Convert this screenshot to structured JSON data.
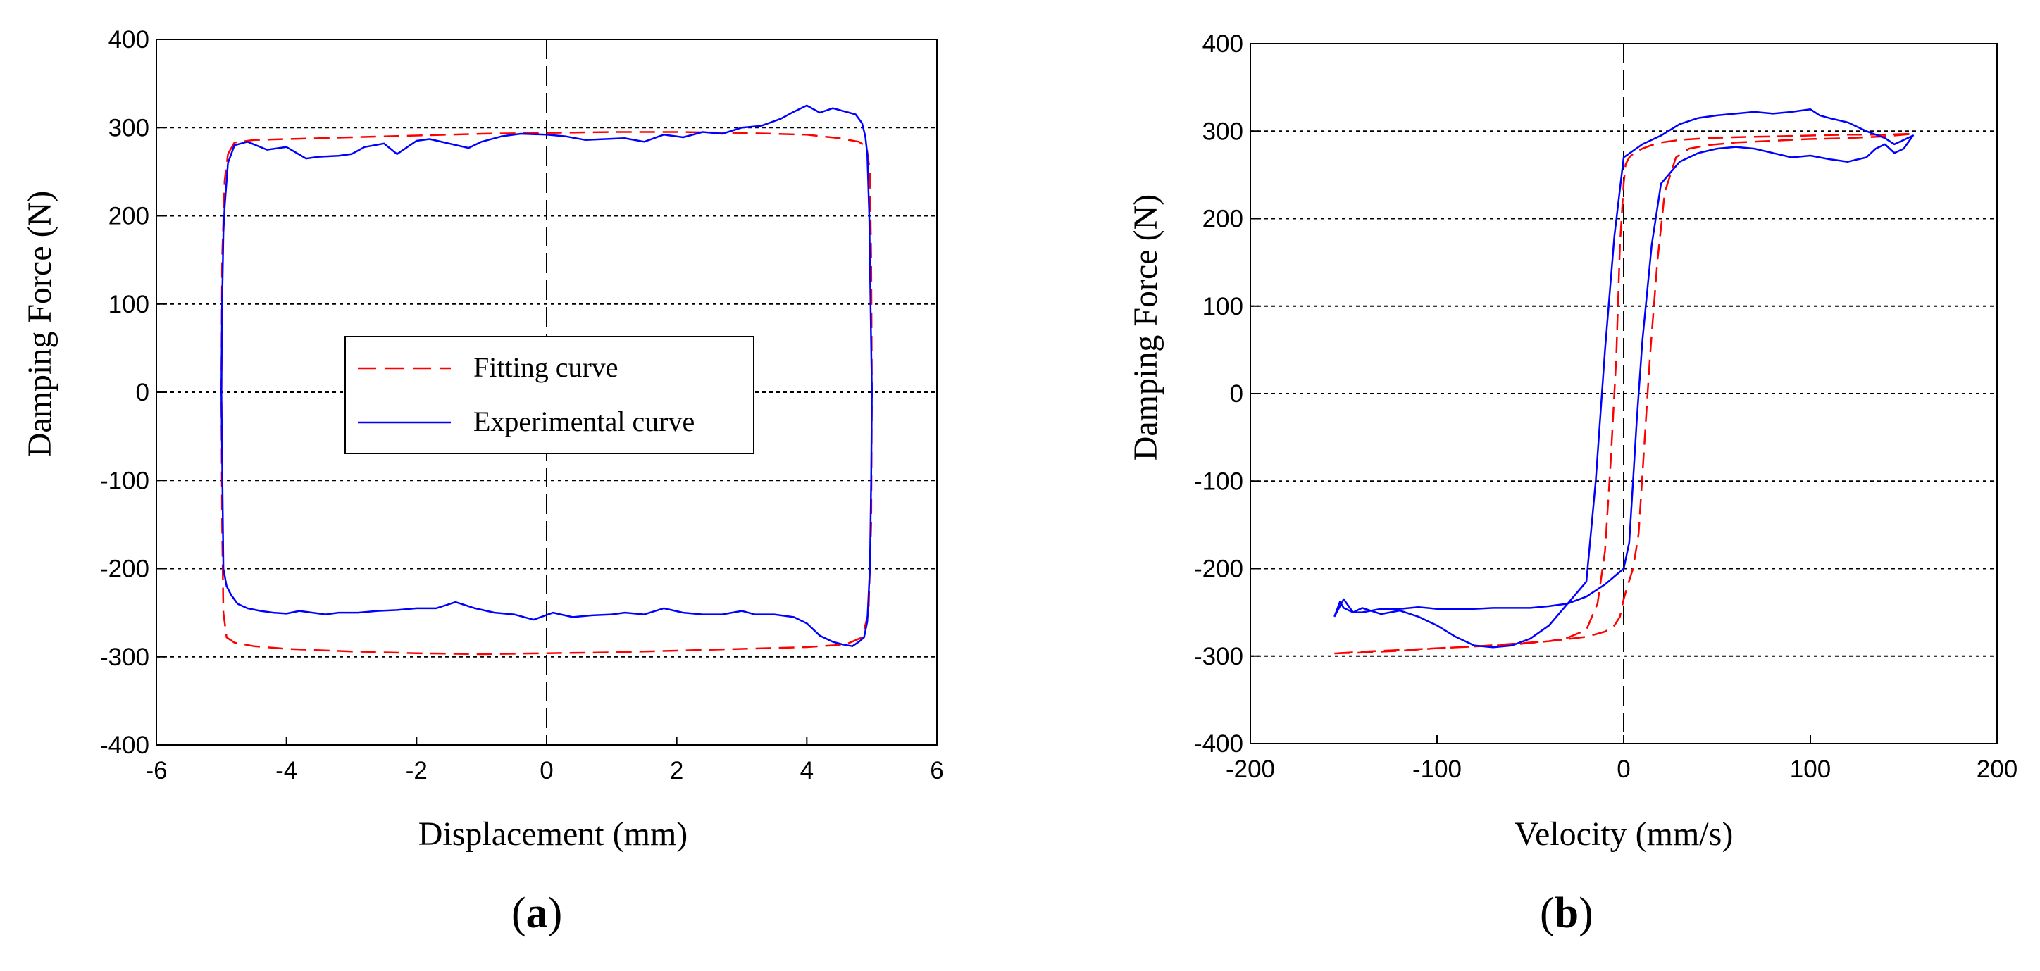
{
  "colors": {
    "fitting": "#ff0000",
    "experimental": "#0000ff",
    "grid": "#000000"
  },
  "chart_data": [
    {
      "type": "line",
      "panel_label": "(a)",
      "panel_letter": "a",
      "xlabel": "Displacement (mm)",
      "ylabel": "Damping Force (N)",
      "xlim": [
        -6,
        6
      ],
      "ylim": [
        -400,
        400
      ],
      "xticks": [
        -6,
        -4,
        -2,
        0,
        2,
        4,
        6
      ],
      "yticks": [
        400,
        300,
        200,
        100,
        0,
        -100,
        -200,
        -300,
        -400
      ],
      "legend": {
        "entries": [
          "Fitting curve",
          "Experimental curve"
        ],
        "placement": "center"
      },
      "series": [
        {
          "name": "Fitting curve",
          "style": "dashed",
          "x": [
            -4.9,
            -4.8,
            -4.5,
            -4,
            -3,
            -2,
            -1,
            0,
            1,
            2,
            3,
            4,
            4.5,
            4.8,
            4.92,
            4.97,
            4.99,
            5.0,
            4.99,
            4.95,
            4.85,
            4.6,
            4,
            3,
            2,
            1,
            0,
            -1,
            -2,
            -3,
            -4,
            -4.5,
            -4.8,
            -4.92,
            -4.97,
            -4.99,
            -5.0,
            -4.99,
            -4.95,
            -4.9
          ],
          "y": [
            270,
            283,
            286,
            287,
            289,
            291,
            293,
            294,
            295,
            295,
            294,
            292,
            288,
            284,
            278,
            250,
            150,
            0,
            -150,
            -250,
            -278,
            -286,
            -289,
            -291,
            -293,
            -295,
            -296,
            -297,
            -296,
            -294,
            -291,
            -288,
            -284,
            -278,
            -250,
            -150,
            0,
            150,
            240,
            270
          ]
        },
        {
          "name": "Experimental curve",
          "style": "solid",
          "x": [
            -4.95,
            -4.9,
            -4.8,
            -4.6,
            -4.3,
            -4.0,
            -3.7,
            -3.5,
            -3.2,
            -3.0,
            -2.8,
            -2.5,
            -2.3,
            -2.0,
            -1.8,
            -1.5,
            -1.2,
            -1.0,
            -0.7,
            -0.4,
            0,
            0.3,
            0.6,
            0.9,
            1.2,
            1.5,
            1.8,
            2.1,
            2.4,
            2.7,
            3.0,
            3.3,
            3.6,
            3.8,
            4.0,
            4.2,
            4.4,
            4.6,
            4.75,
            4.85,
            4.9,
            4.93,
            4.96,
            4.98,
            5.0,
            4.99,
            4.97,
            4.93,
            4.88,
            4.8,
            4.7,
            4.55,
            4.4,
            4.2,
            4.0,
            3.8,
            3.5,
            3.2,
            3.0,
            2.7,
            2.4,
            2.1,
            1.8,
            1.5,
            1.2,
            1.0,
            0.7,
            0.4,
            0.1,
            -0.2,
            -0.5,
            -0.8,
            -1.1,
            -1.4,
            -1.7,
            -2.0,
            -2.3,
            -2.6,
            -2.9,
            -3.2,
            -3.4,
            -3.6,
            -3.8,
            -4.0,
            -4.2,
            -4.4,
            -4.6,
            -4.75,
            -4.85,
            -4.92,
            -4.97,
            -5.0,
            -4.99,
            -4.97,
            -4.95
          ],
          "y": [
            210,
            260,
            280,
            284,
            275,
            278,
            265,
            267,
            268,
            270,
            278,
            282,
            270,
            285,
            287,
            282,
            277,
            284,
            290,
            293,
            292,
            290,
            286,
            287,
            288,
            284,
            292,
            289,
            295,
            293,
            300,
            302,
            310,
            318,
            325,
            317,
            322,
            318,
            315,
            305,
            290,
            270,
            200,
            100,
            0,
            -100,
            -200,
            -260,
            -278,
            -283,
            -288,
            -286,
            -283,
            -276,
            -262,
            -255,
            -252,
            -252,
            -248,
            -252,
            -252,
            -250,
            -245,
            -252,
            -250,
            -252,
            -253,
            -255,
            -250,
            -258,
            -252,
            -250,
            -245,
            -238,
            -245,
            -245,
            -247,
            -248,
            -250,
            -250,
            -252,
            -250,
            -248,
            -251,
            -250,
            -248,
            -245,
            -240,
            -230,
            -220,
            -200,
            0,
            100,
            180,
            210
          ]
        }
      ]
    },
    {
      "type": "line",
      "panel_label": "(b)",
      "panel_letter": "b",
      "xlabel": "Velocity (mm/s)",
      "ylabel": "Damping Force (N)",
      "xlim": [
        -200,
        200
      ],
      "ylim": [
        -400,
        400
      ],
      "xticks": [
        -200,
        -100,
        0,
        100,
        200
      ],
      "yticks": [
        400,
        300,
        200,
        100,
        0,
        -100,
        -200,
        -300,
        -400
      ],
      "series": [
        {
          "name": "Fitting curve",
          "style": "dashed",
          "x": [
            -155,
            -140,
            -120,
            -100,
            -80,
            -60,
            -40,
            -30,
            -20,
            -14,
            -10,
            -7,
            -4,
            -2,
            0,
            1,
            3,
            6,
            10,
            15,
            20,
            30,
            45,
            60,
            80,
            100,
            120,
            140,
            155,
            140,
            120,
            100,
            80,
            60,
            45,
            35,
            28,
            22,
            18,
            14,
            11,
            8,
            5,
            2,
            0,
            -2,
            -5,
            -10,
            -20,
            -40,
            -60,
            -80,
            -100,
            -120,
            -140,
            -155
          ],
          "y": [
            -297,
            -296,
            -294,
            -291,
            -289,
            -287,
            -283,
            -279,
            -270,
            -240,
            -180,
            -80,
            40,
            170,
            240,
            262,
            270,
            276,
            280,
            284,
            287,
            290,
            292,
            293,
            294,
            295,
            296,
            296,
            297,
            294,
            292,
            291,
            289,
            287,
            284,
            280,
            270,
            230,
            150,
            40,
            -60,
            -160,
            -200,
            -220,
            -235,
            -255,
            -265,
            -272,
            -278,
            -283,
            -286,
            -289,
            -291,
            -293,
            -295,
            -297
          ]
        },
        {
          "name": "Experimental curve",
          "style": "solid",
          "x": [
            -155,
            -150,
            -145,
            -140,
            -130,
            -120,
            -110,
            -100,
            -90,
            -80,
            -70,
            -60,
            -50,
            -40,
            -30,
            -20,
            -15,
            -10,
            -5,
            0,
            10,
            20,
            30,
            40,
            50,
            60,
            70,
            80,
            90,
            100,
            105,
            110,
            120,
            130,
            140,
            145,
            150,
            155,
            150,
            145,
            140,
            135,
            130,
            120,
            110,
            100,
            90,
            80,
            70,
            60,
            50,
            40,
            30,
            20,
            15,
            10,
            7,
            5,
            3,
            0,
            -10,
            -20,
            -30,
            -40,
            -50,
            -60,
            -70,
            -80,
            -90,
            -100,
            -110,
            -120,
            -130,
            -140,
            -145,
            -150,
            -152,
            -155
          ],
          "y": [
            -255,
            -235,
            -250,
            -245,
            -252,
            -248,
            -255,
            -265,
            -278,
            -288,
            -290,
            -288,
            -280,
            -265,
            -240,
            -215,
            -100,
            50,
            180,
            270,
            285,
            295,
            308,
            315,
            318,
            320,
            322,
            320,
            322,
            325,
            318,
            315,
            310,
            300,
            292,
            285,
            290,
            295,
            280,
            275,
            285,
            280,
            270,
            265,
            268,
            272,
            270,
            275,
            280,
            282,
            280,
            275,
            265,
            240,
            170,
            60,
            -30,
            -100,
            -170,
            -200,
            -218,
            -232,
            -240,
            -243,
            -245,
            -245,
            -245,
            -246,
            -246,
            -246,
            -244,
            -246,
            -246,
            -250,
            -250,
            -245,
            -238,
            -255
          ]
        }
      ]
    }
  ]
}
